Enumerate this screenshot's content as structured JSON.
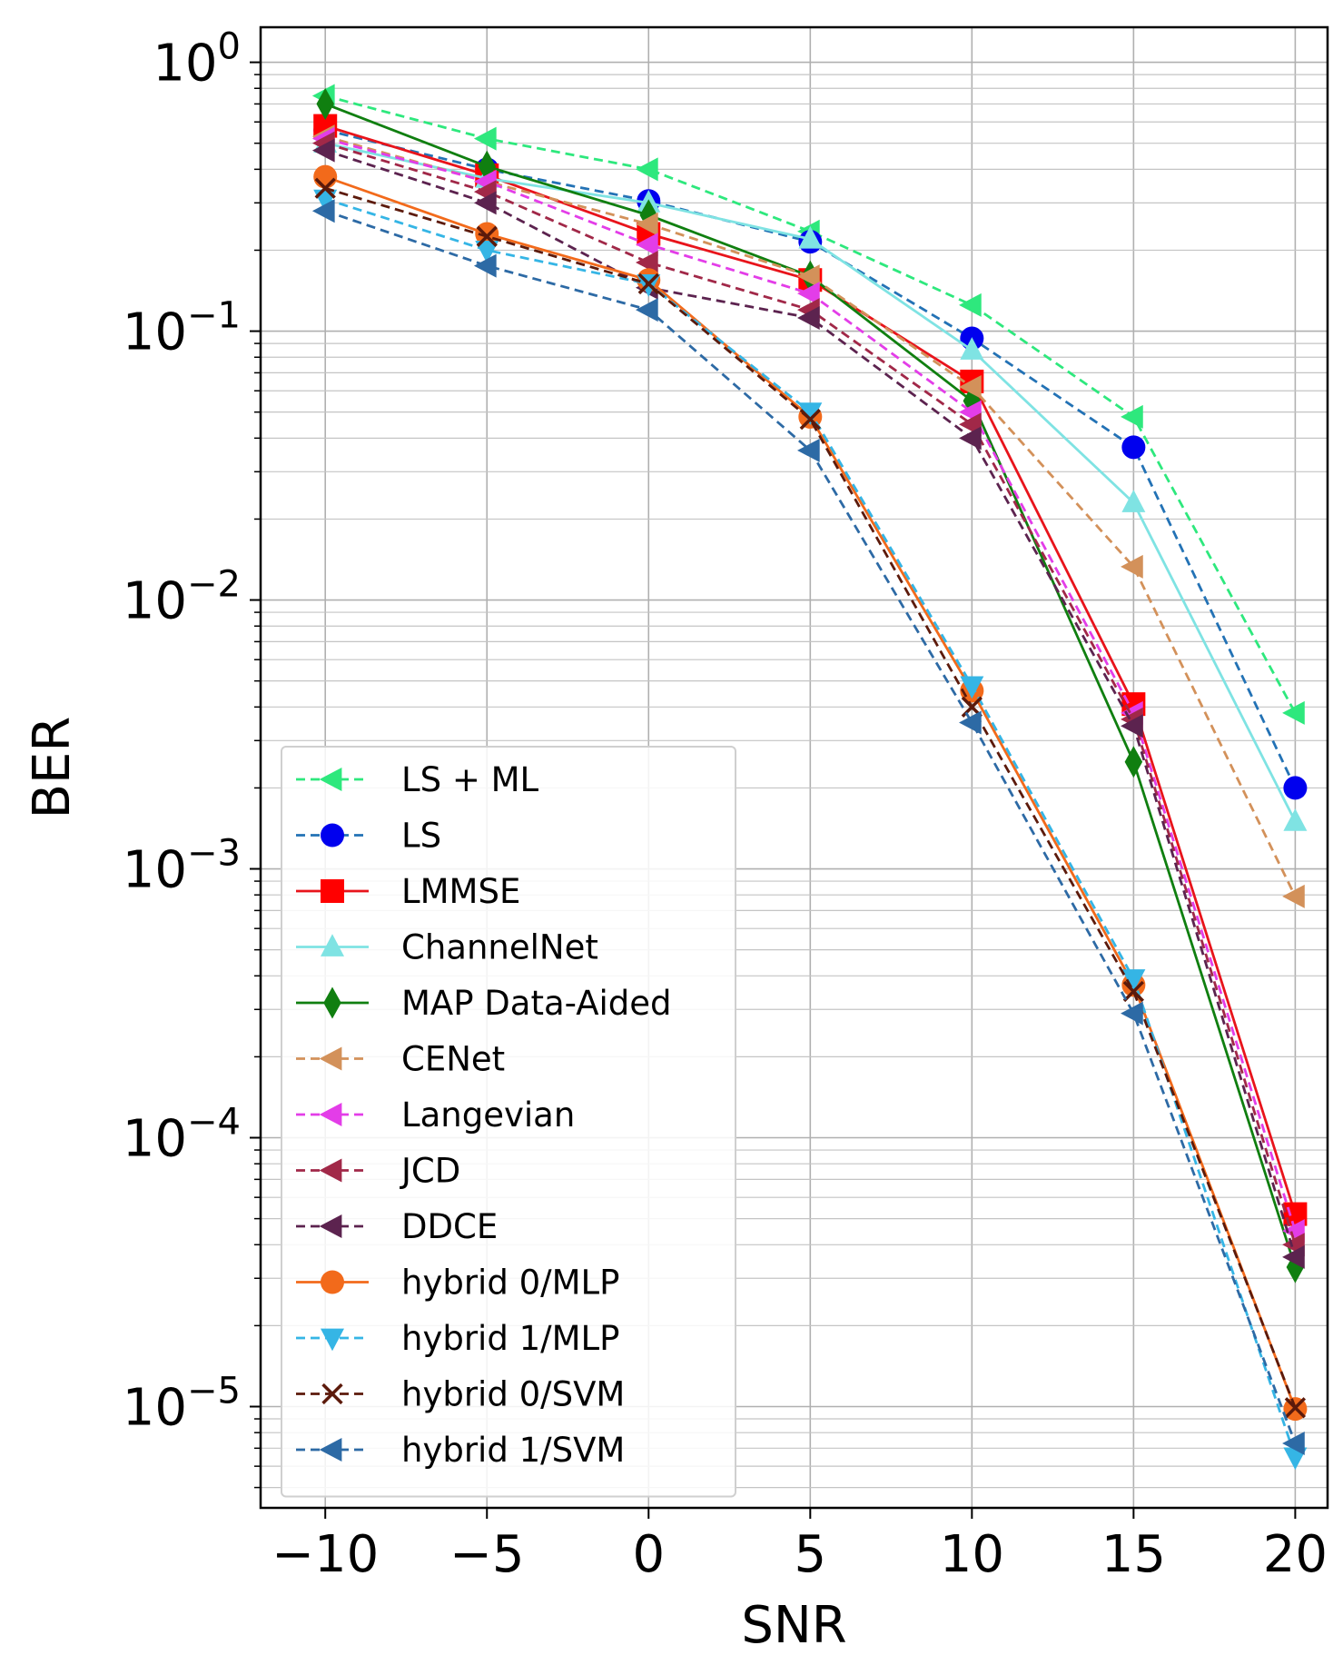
{
  "chart_data": {
    "type": "line",
    "xlabel": "SNR",
    "ylabel": "BER",
    "yscale": "log",
    "grid": true,
    "legend_position": "lower-left",
    "xlim": [
      -12,
      21
    ],
    "ylim": [
      4.2e-06,
      1.35
    ],
    "x": [
      -10,
      -5,
      0,
      5,
      10,
      15,
      20
    ],
    "x_ticks": [
      {
        "value": -10,
        "label": "−10"
      },
      {
        "value": -5,
        "label": "−5"
      },
      {
        "value": 0,
        "label": "0"
      },
      {
        "value": 5,
        "label": "5"
      },
      {
        "value": 10,
        "label": "10"
      },
      {
        "value": 15,
        "label": "15"
      },
      {
        "value": 20,
        "label": "20"
      }
    ],
    "y_ticks": [
      {
        "value": 1,
        "base": "10",
        "exp": "0"
      },
      {
        "value": 0.1,
        "base": "10",
        "exp": "−1"
      },
      {
        "value": 0.01,
        "base": "10",
        "exp": "−2"
      },
      {
        "value": 0.001,
        "base": "10",
        "exp": "−3"
      },
      {
        "value": 0.0001,
        "base": "10",
        "exp": "−4"
      },
      {
        "value": 1e-05,
        "base": "10",
        "exp": "−5"
      }
    ],
    "series": [
      {
        "name": "LS + ML",
        "color": "#2ee87d",
        "dashed": true,
        "marker": "triangle-left",
        "values": [
          0.75,
          0.52,
          0.4,
          0.235,
          0.125,
          0.048,
          0.0038
        ]
      },
      {
        "name": "LS",
        "color": "#2372b5",
        "marker_color": "#0000ee",
        "dashed": true,
        "marker": "circle",
        "values": [
          0.56,
          0.4,
          0.305,
          0.215,
          0.094,
          0.037,
          0.002
        ]
      },
      {
        "name": "LMMSE",
        "color": "#e8141b",
        "marker_color": "#ff0000",
        "dashed": false,
        "marker": "square",
        "values": [
          0.58,
          0.38,
          0.23,
          0.155,
          0.065,
          0.0041,
          5.2e-05
        ]
      },
      {
        "name": "ChannelNet",
        "color": "#7fe3e3",
        "dashed": false,
        "marker": "triangle-up",
        "values": [
          0.5,
          0.37,
          0.3,
          0.22,
          0.085,
          0.023,
          0.0015
        ]
      },
      {
        "name": "MAP Data-Aided",
        "color": "#107f10",
        "dashed": false,
        "marker": "diamond",
        "values": [
          0.7,
          0.41,
          0.27,
          0.16,
          0.055,
          0.0025,
          3.3e-05
        ]
      },
      {
        "name": "CENet",
        "color": "#d3915a",
        "dashed": true,
        "marker": "triangle-left",
        "values": [
          0.53,
          0.36,
          0.25,
          0.16,
          0.062,
          0.0133,
          0.00079
        ]
      },
      {
        "name": "Langevian",
        "color": "#e33de8",
        "dashed": true,
        "marker": "triangle-left",
        "values": [
          0.52,
          0.36,
          0.21,
          0.138,
          0.05,
          0.0038,
          4.5e-05
        ]
      },
      {
        "name": "JCD",
        "color": "#a12848",
        "dashed": true,
        "marker": "triangle-left",
        "values": [
          0.5,
          0.33,
          0.18,
          0.12,
          0.045,
          0.0036,
          4e-05
        ]
      },
      {
        "name": "DDCE",
        "color": "#5c234f",
        "dashed": true,
        "marker": "triangle-left",
        "values": [
          0.47,
          0.3,
          0.145,
          0.112,
          0.04,
          0.0034,
          3.6e-05
        ]
      },
      {
        "name": "hybrid 0/MLP",
        "color": "#f26a1b",
        "dashed": false,
        "marker": "circle",
        "values": [
          0.375,
          0.23,
          0.155,
          0.048,
          0.0046,
          0.00037,
          9.8e-06
        ]
      },
      {
        "name": "hybrid 1/MLP",
        "color": "#35b5e5",
        "dashed": true,
        "marker": "triangle-down",
        "values": [
          0.31,
          0.2,
          0.15,
          0.05,
          0.0048,
          0.00039,
          6.5e-06
        ]
      },
      {
        "name": "hybrid 0/SVM",
        "color": "#5c1a0b",
        "dashed": true,
        "marker": "x",
        "values": [
          0.34,
          0.225,
          0.15,
          0.047,
          0.004,
          0.00035,
          9.9e-06
        ]
      },
      {
        "name": "hybrid 1/SVM",
        "color": "#2d6aa5",
        "dashed": true,
        "marker": "triangle-left",
        "values": [
          0.28,
          0.175,
          0.12,
          0.036,
          0.0035,
          0.00029,
          7.3e-06
        ]
      }
    ]
  }
}
